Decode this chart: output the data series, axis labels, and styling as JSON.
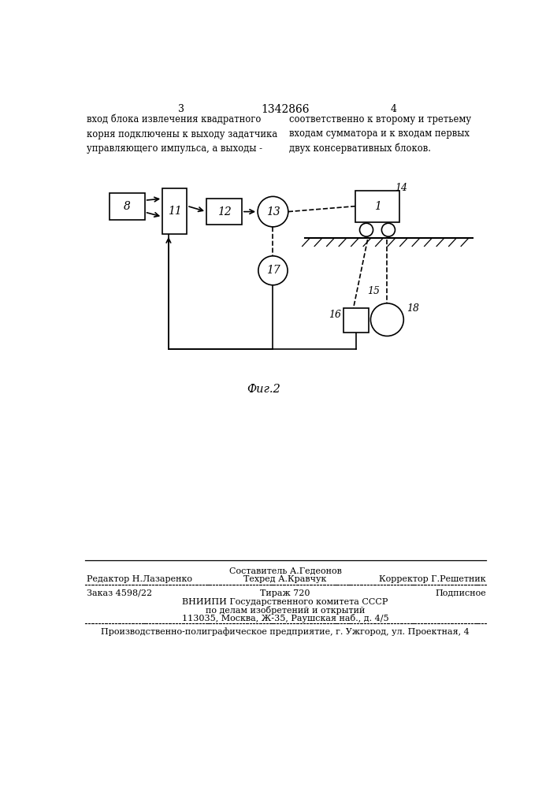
{
  "bg_color": "#ffffff",
  "text_color": "#000000",
  "line_color": "#000000",
  "page_number_left": "3",
  "page_number_center": "1342866",
  "page_number_right": "4",
  "text_left": "вход блока извлечения квадратного\nкорня подключены к выходу задатчика\nуправляющего импульса, а выходы -",
  "text_right": "соответственно к второму и третьему\nвходам сумматора и к входам первых\nдвух консервативных блоков.",
  "fig_caption": "Фиг.2",
  "footer_line0_col2": "Составитель А.Гедеонов",
  "footer_line1_col1": "Редактор Н.Лазаренко",
  "footer_line1_col2": "Техред А.Кравчук",
  "footer_line1_col3": "Корректор Г.Решетник",
  "footer_line2_col1": "Заказ 4598/22",
  "footer_line2_col2": "Тираж 720",
  "footer_line2_col3": "Подписное",
  "footer_line3": "ВНИИПИ Государственного комитета СССР",
  "footer_line4": "по делам изобретений и открытий",
  "footer_line5": "113035, Москва, Ж-35, Раушская наб., д. 4/5",
  "footer_line6": "Производственно-полиграфическое предприятие, г. Ужгород, ул. Проектная, 4"
}
